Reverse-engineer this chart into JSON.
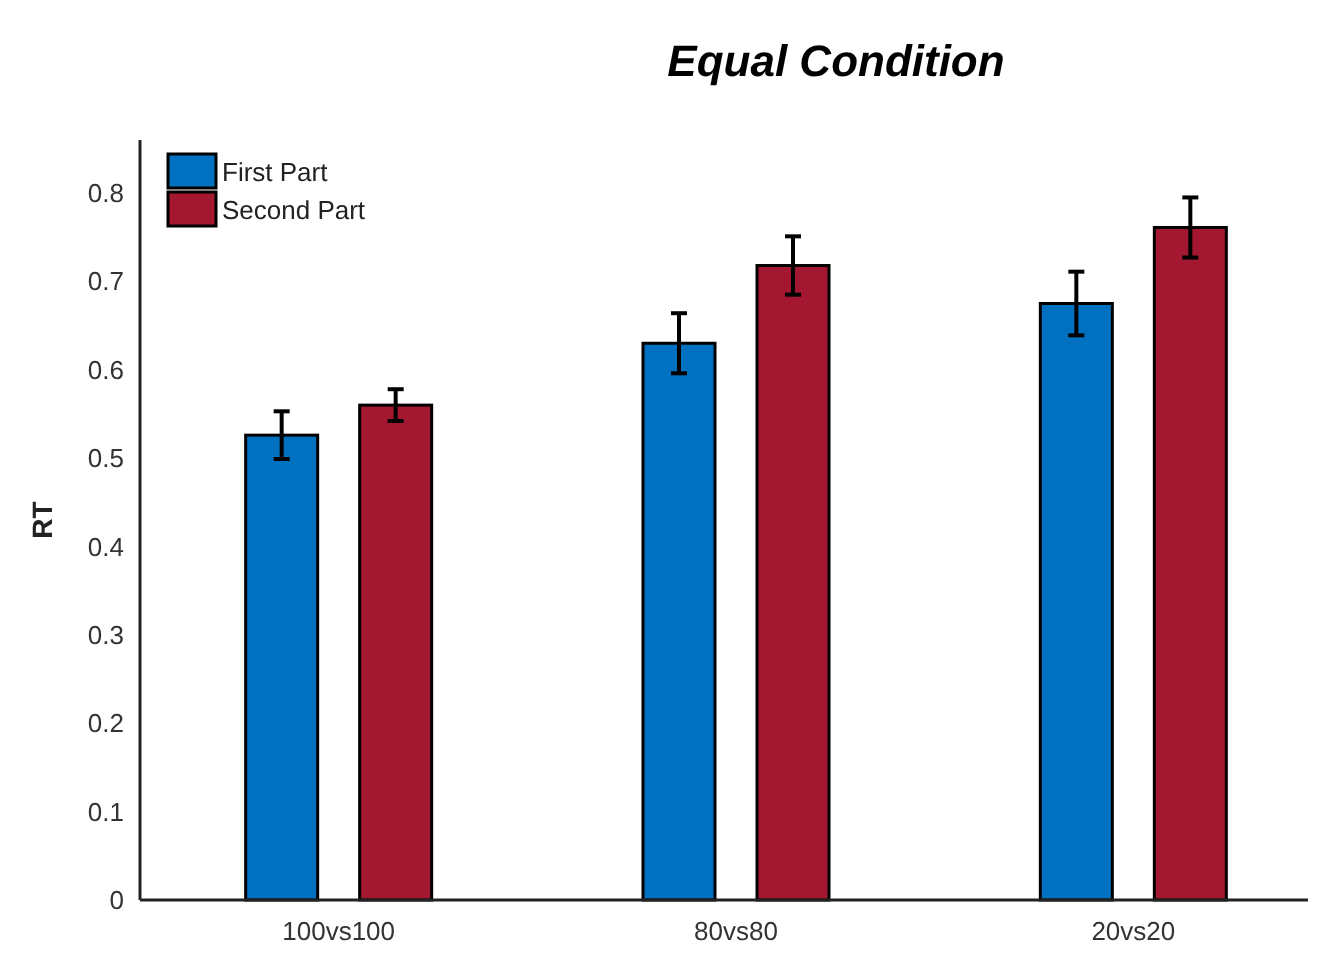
{
  "chart_data": {
    "type": "bar",
    "title": "Equal Condition",
    "ylabel": "RT",
    "categories": [
      "100vs100",
      "80vs80",
      "20vs20"
    ],
    "series": [
      {
        "name": "First Part",
        "color": "#0070c0",
        "values": [
          0.526,
          0.63,
          0.675
        ],
        "errors": [
          0.027,
          0.034,
          0.036
        ]
      },
      {
        "name": "Second Part",
        "color": "#a31830",
        "values": [
          0.56,
          0.718,
          0.761
        ],
        "errors": [
          0.018,
          0.033,
          0.034
        ]
      }
    ],
    "ylim": [
      0,
      0.86
    ],
    "yticks": [
      0,
      0.1,
      0.2,
      0.3,
      0.4,
      0.5,
      0.6,
      0.7,
      0.8
    ],
    "grid": false,
    "legend": "top left"
  }
}
